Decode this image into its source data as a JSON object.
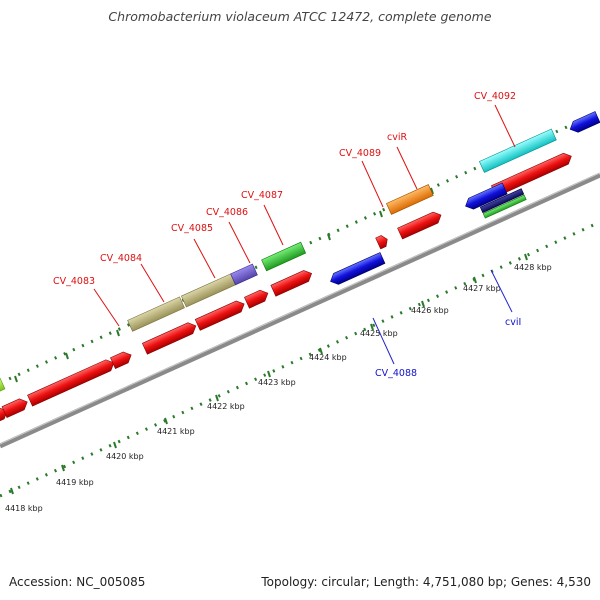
{
  "title": "Chromobacterium violaceum ATCC 12472, complete genome",
  "footer": {
    "accession": "Accession: NC_005085",
    "summary": "Topology: circular; Length: 4,751,080 bp; Genes: 4,530"
  },
  "colors": {
    "backbone": "#8a8a8a",
    "ticks": "#2a7a2a",
    "label_forward": "#dd1111",
    "label_reverse": "#1111cc",
    "leader_forward": "#dd1111",
    "leader_reverse": "#2222cc"
  },
  "scale_labels": [
    "4418 kbp",
    "4419 kbp",
    "4420 kbp",
    "4421 kbp",
    "4422 kbp",
    "4423 kbp",
    "4424 kbp",
    "4425 kbp",
    "4426 kbp",
    "4427 kbp",
    "4428 kbp"
  ],
  "gene_labels": [
    {
      "text": "CV_4083",
      "strand": "forward"
    },
    {
      "text": "CV_4084",
      "strand": "forward"
    },
    {
      "text": "CV_4085",
      "strand": "forward"
    },
    {
      "text": "CV_4086",
      "strand": "forward"
    },
    {
      "text": "CV_4087",
      "strand": "forward"
    },
    {
      "text": "CV_4089",
      "strand": "forward"
    },
    {
      "text": "cviR",
      "strand": "forward"
    },
    {
      "text": "CV_4092",
      "strand": "forward"
    },
    {
      "text": "CV_4088",
      "strand": "reverse"
    },
    {
      "text": "cviI",
      "strand": "reverse"
    }
  ],
  "features": [
    {
      "name": "feature-lime",
      "color": "#9be233",
      "ring": "outer"
    },
    {
      "name": "feature-tan-1",
      "color": "#b8b078",
      "ring": "outer"
    },
    {
      "name": "feature-tan-2",
      "color": "#b8b078",
      "ring": "outer"
    },
    {
      "name": "feature-purple",
      "color": "#7766cc",
      "ring": "outer"
    },
    {
      "name": "feature-green",
      "color": "#33bb33",
      "ring": "outer"
    },
    {
      "name": "feature-orange",
      "color": "#ff8c1a",
      "ring": "outer"
    },
    {
      "name": "feature-cyan",
      "color": "#22e6e6",
      "ring": "outer"
    },
    {
      "name": "cds-forward",
      "color": "#ee1111",
      "ring": "forward"
    },
    {
      "name": "cds-reverse",
      "color": "#1111dd",
      "ring": "reverse"
    },
    {
      "name": "feature-navy",
      "color": "#1a1a80",
      "ring": "reverse"
    },
    {
      "name": "feature-green-small",
      "color": "#33bb33",
      "ring": "reverse"
    }
  ]
}
